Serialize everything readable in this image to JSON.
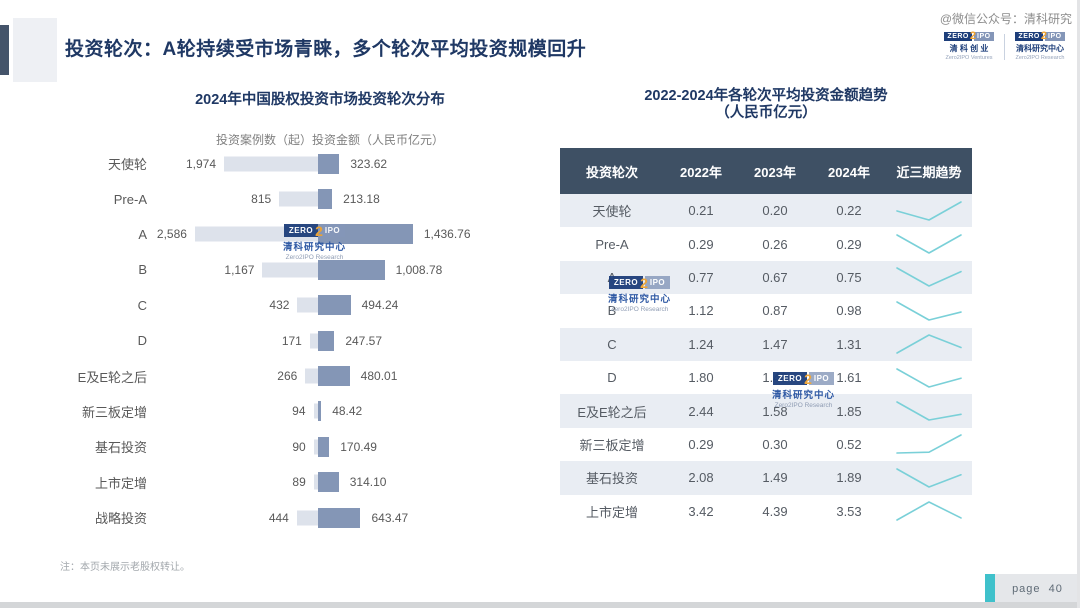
{
  "page": {
    "title": "投资轮次：A轮持续受市场青睐，多个轮次平均投资规模回升",
    "wechat_credit": "@微信公众号：清科研究",
    "note": "注：本页未展示老股权转让。",
    "page_label": "page",
    "page_number": "40"
  },
  "logos": {
    "ventures": {
      "zero": "ZERO",
      "two": "2",
      "ipo": "IPO",
      "cn": "清 科 创 业",
      "en": "Zero2IPO Ventures"
    },
    "research": {
      "zero": "ZERO",
      "two": "2",
      "ipo": "IPO",
      "cn": "清科研究中心",
      "en": "Zero2IPO Research"
    }
  },
  "watermark": {
    "zero": "ZERO",
    "two": "2",
    "ipo": "IPO",
    "cn": "清科研究中心",
    "en": "Zero2IPO Research"
  },
  "chart_data": [
    {
      "type": "bar",
      "orientation": "horizontal",
      "title": "2024年中国股权投资市场投资轮次分布",
      "legend_text": "投资案例数（起）投资金额（人民币亿元）",
      "categories": [
        "天使轮",
        "Pre-A",
        "A",
        "B",
        "C",
        "D",
        "E及E轮之后",
        "新三板定增",
        "基石投资",
        "上市定增",
        "战略投资"
      ],
      "series": [
        {
          "name": "投资案例数（起）",
          "color": "#dde2eb",
          "values": [
            1974,
            815,
            2586,
            1167,
            432,
            171,
            266,
            94,
            90,
            89,
            444
          ],
          "labels": [
            "1,974",
            "815",
            "2,586",
            "1,167",
            "432",
            "171",
            "266",
            "94",
            "90",
            "89",
            "444"
          ]
        },
        {
          "name": "投资金额（人民币亿元）",
          "color": "#8496b6",
          "values": [
            323.62,
            213.18,
            1436.76,
            1008.78,
            494.24,
            247.57,
            480.01,
            48.42,
            170.49,
            314.1,
            643.47
          ],
          "labels": [
            "323.62",
            "213.18",
            "1,436.76",
            "1,008.78",
            "494.24",
            "247.57",
            "480.01",
            "48.42",
            "170.49",
            "314.10",
            "643.47"
          ]
        }
      ]
    },
    {
      "type": "table",
      "title": "2022-2024年各轮次平均投资金额趋势",
      "subtitle": "（人民币亿元）",
      "columns": [
        "投资轮次",
        "2022年",
        "2023年",
        "2024年",
        "近三期趋势"
      ],
      "sparkline_color": "#7ad0d8",
      "rows": [
        {
          "label": "天使轮",
          "values": [
            0.21,
            0.2,
            0.22
          ],
          "display": [
            "0.21",
            "0.20",
            "0.22"
          ]
        },
        {
          "label": "Pre-A",
          "values": [
            0.29,
            0.26,
            0.29
          ],
          "display": [
            "0.29",
            "0.26",
            "0.29"
          ]
        },
        {
          "label": "A",
          "values": [
            0.77,
            0.67,
            0.75
          ],
          "display": [
            "0.77",
            "0.67",
            "0.75"
          ]
        },
        {
          "label": "B",
          "values": [
            1.12,
            0.87,
            0.98
          ],
          "display": [
            "1.12",
            "0.87",
            "0.98"
          ]
        },
        {
          "label": "C",
          "values": [
            1.24,
            1.47,
            1.31
          ],
          "display": [
            "1.24",
            "1.47",
            "1.31"
          ]
        },
        {
          "label": "D",
          "values": [
            1.8,
            1.43,
            1.61
          ],
          "display": [
            "1.80",
            "1.43",
            "1.61"
          ]
        },
        {
          "label": "E及E轮之后",
          "values": [
            2.44,
            1.58,
            1.85
          ],
          "display": [
            "2.44",
            "1.58",
            "1.85"
          ]
        },
        {
          "label": "新三板定增",
          "values": [
            0.29,
            0.3,
            0.52
          ],
          "display": [
            "0.29",
            "0.30",
            "0.52"
          ]
        },
        {
          "label": "基石投资",
          "values": [
            2.08,
            1.49,
            1.89
          ],
          "display": [
            "2.08",
            "1.49",
            "1.89"
          ]
        },
        {
          "label": "上市定增",
          "values": [
            3.42,
            4.39,
            3.53
          ],
          "display": [
            "3.42",
            "4.39",
            "3.53"
          ]
        }
      ]
    }
  ],
  "colors": {
    "title_navy": "#1f3864",
    "header_slate": "#3e5064",
    "row_stripe": "#e9edf3",
    "bar_count": "#dde2eb",
    "bar_amount": "#8496b6",
    "teal_accent": "#3fc1cb",
    "sparkline": "#7ad0d8"
  }
}
